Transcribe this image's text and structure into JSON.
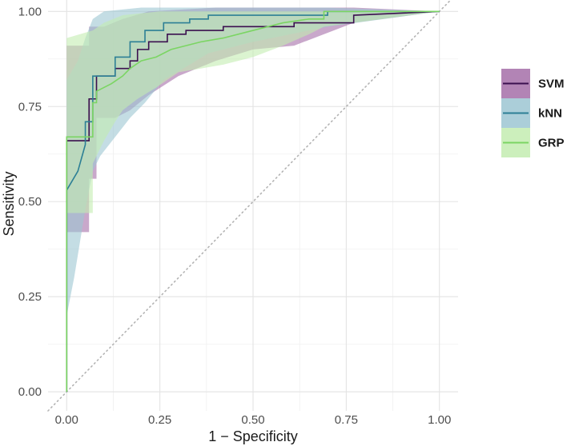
{
  "chart_data": {
    "type": "line",
    "subtype": "roc-curve-with-confidence-bands",
    "title": "",
    "xlabel": "1 − Specificity",
    "ylabel": "Sensitivity",
    "xlim": [
      -0.05,
      1.05
    ],
    "ylim": [
      -0.05,
      1.03
    ],
    "x_ticks": [
      0,
      0.25,
      0.5,
      0.75,
      1
    ],
    "x_tick_labels": [
      "0.00",
      "0.25",
      "0.50",
      "0.75",
      "1.00"
    ],
    "y_ticks": [
      0,
      0.25,
      0.5,
      0.75,
      1
    ],
    "y_tick_labels": [
      "0.00",
      "0.25",
      "0.50",
      "0.75",
      "1.00"
    ],
    "grid": true,
    "reference_line": {
      "from": [
        0,
        0
      ],
      "to": [
        1,
        1
      ],
      "style": "dotted",
      "color": "#b3b3b3"
    },
    "legend": {
      "position": "right",
      "entries": [
        {
          "label": "SVM",
          "line_color": "#3b0f4f",
          "fill_color": "#a56ea8"
        },
        {
          "label": "kNN",
          "line_color": "#2c7f95",
          "fill_color": "#9cc6d2"
        },
        {
          "label": "GRP",
          "line_color": "#7bd563",
          "fill_color": "#c3ecb0"
        }
      ]
    },
    "series": [
      {
        "name": "SVM",
        "line_color": "#3b0f4f",
        "fill_color": "#a56ea8",
        "fill_opacity": 0.6,
        "curve": [
          [
            0,
            0
          ],
          [
            0,
            0.42
          ],
          [
            0,
            0.66
          ],
          [
            0.03,
            0.66
          ],
          [
            0.06,
            0.66
          ],
          [
            0.06,
            0.77
          ],
          [
            0.08,
            0.77
          ],
          [
            0.08,
            0.83
          ],
          [
            0.13,
            0.83
          ],
          [
            0.13,
            0.85
          ],
          [
            0.17,
            0.85
          ],
          [
            0.17,
            0.87
          ],
          [
            0.19,
            0.87
          ],
          [
            0.19,
            0.9
          ],
          [
            0.22,
            0.9
          ],
          [
            0.22,
            0.92
          ],
          [
            0.27,
            0.92
          ],
          [
            0.27,
            0.94
          ],
          [
            0.32,
            0.94
          ],
          [
            0.32,
            0.95
          ],
          [
            0.42,
            0.95
          ],
          [
            0.42,
            0.96
          ],
          [
            0.61,
            0.96
          ],
          [
            0.61,
            0.97
          ],
          [
            0.77,
            0.97
          ],
          [
            0.77,
            0.99
          ],
          [
            1,
            1
          ]
        ],
        "upper": [
          [
            0,
            0.91
          ],
          [
            0.06,
            0.91
          ],
          [
            0.06,
            0.96
          ],
          [
            0.1,
            0.96
          ],
          [
            0.15,
            0.98
          ],
          [
            0.22,
            1.0
          ],
          [
            0.4,
            1.01
          ],
          [
            0.77,
            1.01
          ],
          [
            1,
            1
          ]
        ],
        "lower": [
          [
            0,
            0.42
          ],
          [
            0.06,
            0.42
          ],
          [
            0.06,
            0.56
          ],
          [
            0.08,
            0.56
          ],
          [
            0.08,
            0.72
          ],
          [
            0.13,
            0.72
          ],
          [
            0.17,
            0.74
          ],
          [
            0.22,
            0.78
          ],
          [
            0.3,
            0.83
          ],
          [
            0.4,
            0.87
          ],
          [
            0.5,
            0.9
          ],
          [
            0.61,
            0.91
          ],
          [
            0.77,
            0.97
          ],
          [
            1,
            1
          ]
        ]
      },
      {
        "name": "kNN",
        "line_color": "#2c7f95",
        "fill_color": "#9cc6d2",
        "fill_opacity": 0.6,
        "curve": [
          [
            0,
            0
          ],
          [
            0,
            0.53
          ],
          [
            0.03,
            0.58
          ],
          [
            0.05,
            0.65
          ],
          [
            0.05,
            0.71
          ],
          [
            0.07,
            0.71
          ],
          [
            0.07,
            0.83
          ],
          [
            0.13,
            0.83
          ],
          [
            0.13,
            0.88
          ],
          [
            0.17,
            0.88
          ],
          [
            0.17,
            0.92
          ],
          [
            0.21,
            0.92
          ],
          [
            0.21,
            0.95
          ],
          [
            0.26,
            0.95
          ],
          [
            0.26,
            0.97
          ],
          [
            0.33,
            0.97
          ],
          [
            0.33,
            0.98
          ],
          [
            0.38,
            0.98
          ],
          [
            0.38,
            0.99
          ],
          [
            0.7,
            0.99
          ],
          [
            0.7,
            1.0
          ],
          [
            1,
            1
          ]
        ],
        "upper": [
          [
            0,
            0.82
          ],
          [
            0.03,
            0.87
          ],
          [
            0.05,
            0.93
          ],
          [
            0.07,
            0.98
          ],
          [
            0.1,
            1.0
          ],
          [
            0.2,
            1.01
          ],
          [
            0.7,
            1.01
          ],
          [
            1,
            1
          ]
        ],
        "lower": [
          [
            0,
            0.2
          ],
          [
            0.02,
            0.3
          ],
          [
            0.04,
            0.42
          ],
          [
            0.05,
            0.48
          ],
          [
            0.07,
            0.58
          ],
          [
            0.09,
            0.62
          ],
          [
            0.13,
            0.67
          ],
          [
            0.17,
            0.72
          ],
          [
            0.21,
            0.76
          ],
          [
            0.26,
            0.82
          ],
          [
            0.33,
            0.86
          ],
          [
            0.38,
            0.89
          ],
          [
            0.5,
            0.92
          ],
          [
            0.7,
            0.96
          ],
          [
            1,
            1
          ]
        ]
      },
      {
        "name": "GRP",
        "line_color": "#7bd563",
        "fill_color": "#c3ecb0",
        "fill_opacity": 0.6,
        "curve": [
          [
            0,
            0
          ],
          [
            0,
            0.67
          ],
          [
            0.07,
            0.67
          ],
          [
            0.07,
            0.76
          ],
          [
            0.08,
            0.76
          ],
          [
            0.08,
            0.79
          ],
          [
            0.12,
            0.81
          ],
          [
            0.15,
            0.83
          ],
          [
            0.17,
            0.85
          ],
          [
            0.2,
            0.87
          ],
          [
            0.24,
            0.88
          ],
          [
            0.28,
            0.9
          ],
          [
            0.32,
            0.91
          ],
          [
            0.36,
            0.92
          ],
          [
            0.42,
            0.93
          ],
          [
            0.5,
            0.95
          ],
          [
            0.58,
            0.97
          ],
          [
            0.65,
            0.98
          ],
          [
            0.69,
            0.98
          ],
          [
            0.69,
            1.0
          ],
          [
            1,
            1
          ]
        ],
        "upper": [
          [
            0,
            0.93
          ],
          [
            0.07,
            0.95
          ],
          [
            0.1,
            0.97
          ],
          [
            0.15,
            0.99
          ],
          [
            0.25,
            1.0
          ],
          [
            0.69,
            1.0
          ],
          [
            1,
            1
          ]
        ],
        "lower": [
          [
            0,
            0.47
          ],
          [
            0.07,
            0.47
          ],
          [
            0.07,
            0.6
          ],
          [
            0.1,
            0.66
          ],
          [
            0.13,
            0.71
          ],
          [
            0.15,
            0.74
          ],
          [
            0.19,
            0.77
          ],
          [
            0.24,
            0.8
          ],
          [
            0.3,
            0.84
          ],
          [
            0.42,
            0.86
          ],
          [
            0.5,
            0.88
          ],
          [
            0.58,
            0.91
          ],
          [
            0.65,
            0.94
          ],
          [
            0.69,
            0.96
          ],
          [
            1,
            1
          ]
        ]
      }
    ]
  }
}
